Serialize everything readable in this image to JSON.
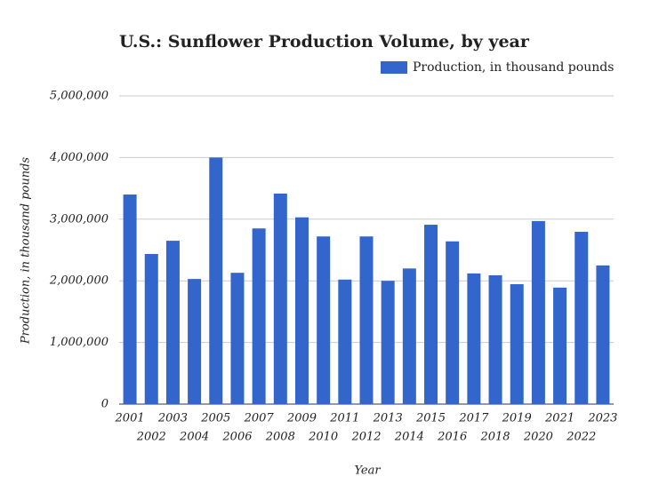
{
  "chart_data": {
    "type": "bar",
    "title": "U.S.: Sunflower Production Volume, by year",
    "x_label": "Year",
    "y_label": "Production, in thousand pounds",
    "categories": [
      "2001",
      "2002",
      "2003",
      "2004",
      "2005",
      "2006",
      "2007",
      "2008",
      "2009",
      "2010",
      "2011",
      "2012",
      "2013",
      "2014",
      "2015",
      "2016",
      "2017",
      "2018",
      "2019",
      "2020",
      "2021",
      "2022",
      "2023"
    ],
    "series": [
      {
        "name": "Production, in thousand pounds",
        "color": "#3366cc",
        "values": [
          3400000,
          2435000,
          2650000,
          2030000,
          4000000,
          2130000,
          2850000,
          3415000,
          3030000,
          2720000,
          2020000,
          2720000,
          2000000,
          2200000,
          2910000,
          2640000,
          2120000,
          2090000,
          1945000,
          2970000,
          1890000,
          2795000,
          2250000
        ]
      }
    ],
    "ylim": [
      0,
      5000000
    ],
    "yticks": [
      0,
      {
        "value": 1000000,
        "label": "1,000,000"
      },
      {
        "value": 2000000,
        "label": "2,000,000"
      },
      {
        "value": 3000000,
        "label": "3,000,000"
      },
      {
        "value": 4000000,
        "label": "4,000,000"
      },
      {
        "value": 5000000,
        "label": "5,000,000"
      }
    ],
    "grid": true,
    "legend": "top-right"
  }
}
